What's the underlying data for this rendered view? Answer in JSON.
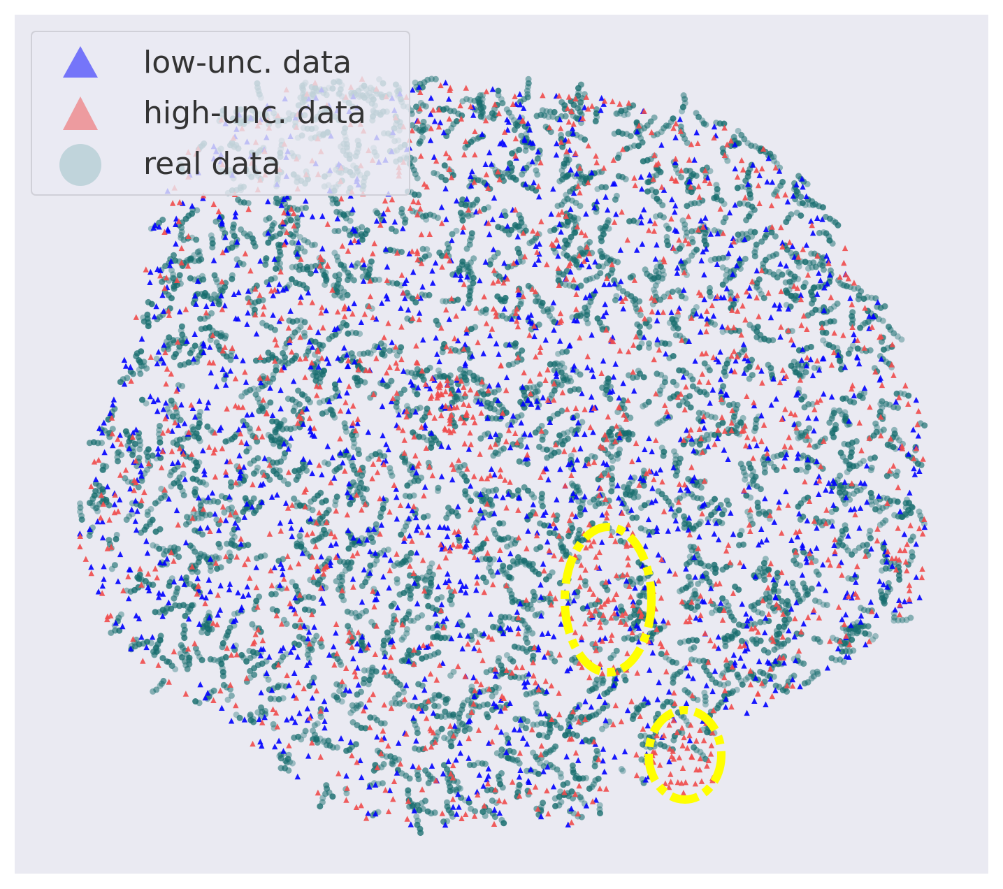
{
  "chart_data": {
    "type": "scatter",
    "title": "",
    "xlabel": "",
    "ylabel": "",
    "grid": false,
    "axes_visible": false,
    "legend_placement": "top-left",
    "background_color": "#eaeaf2",
    "series": [
      {
        "name": "low-unc. data",
        "marker": "triangle",
        "color": "#0000ff",
        "approx_count": 1500
      },
      {
        "name": "high-unc. data",
        "marker": "triangle",
        "color": "#ef4b4b",
        "approx_count": 1500
      },
      {
        "name": "real data",
        "marker": "circle",
        "color": "#176d6e",
        "approx_count": 6000
      }
    ],
    "annotations": [
      {
        "type": "dashed-ellipse",
        "color": "#ffff00",
        "note": "cluster of high-unc. data (middle-right)"
      },
      {
        "type": "dashed-ellipse",
        "color": "#ffff00",
        "note": "cluster of high-unc. data (lower-right)"
      }
    ]
  }
}
